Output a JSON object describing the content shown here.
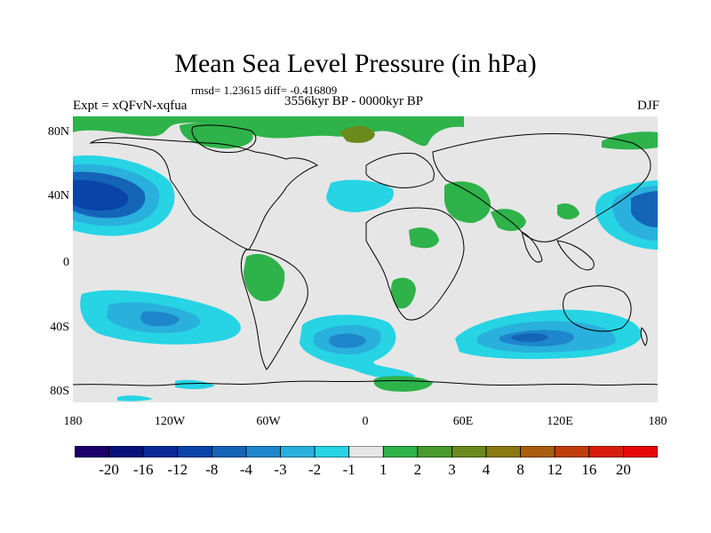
{
  "title": "Mean Sea Level Pressure (in hPa)",
  "stats": "rmsd= 1.23615 diff= -0.416809",
  "experiment": "Expt = xQFvN-xqfua",
  "period": "3556kyr BP - 0000kyr BP",
  "season": "DJF",
  "map": {
    "lat_labels": [
      "80N",
      "40N",
      "0",
      "40S",
      "80S"
    ],
    "lon_labels": [
      "180",
      "120W",
      "60W",
      "0",
      "60E",
      "120E",
      "180"
    ],
    "background_color": "#e6e6e6",
    "coastline_color": "#000000"
  },
  "colorbar": {
    "colors": [
      "#1c006b",
      "#08107a",
      "#0a2a96",
      "#0a44a8",
      "#1464b8",
      "#1e86cc",
      "#2ab0dc",
      "#26d4e4",
      "#e6e6e6",
      "#2eb24a",
      "#4a9a2e",
      "#6a8a1e",
      "#8a7a10",
      "#a85e0c",
      "#c03c0c",
      "#d81c0c",
      "#e60808"
    ],
    "labels": [
      "-20",
      "-16",
      "-12",
      "-8",
      "-4",
      "-3",
      "-2",
      "-1",
      "1",
      "2",
      "3",
      "4",
      "8",
      "12",
      "16",
      "20"
    ]
  }
}
